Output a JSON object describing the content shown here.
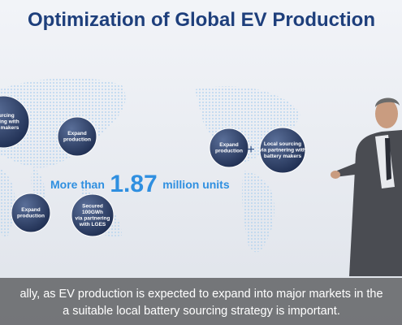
{
  "title": "Optimization of Global EV Production",
  "bubbles": [
    {
      "lines": [
        "sourcing",
        "rtnering with",
        "ttery makers"
      ]
    },
    {
      "lines": [
        "Expand",
        "production"
      ]
    },
    {
      "lines": [
        "Expand",
        "production"
      ]
    },
    {
      "lines": [
        "Secured",
        "100GWh",
        "via partnering",
        "with LGES"
      ]
    },
    {
      "lines": [
        "Expand",
        "production"
      ]
    },
    {
      "lines": [
        "Local sourcing",
        "via partnering with",
        "battery makers"
      ]
    }
  ],
  "plus": "+",
  "highlight": {
    "prefix": "More than",
    "number": "1.87",
    "suffix": "million units"
  },
  "caption": {
    "lines": [
      "ally, as EV production is expected to expand into major markets in the",
      "a suitable local battery sourcing strategy is important."
    ]
  }
}
